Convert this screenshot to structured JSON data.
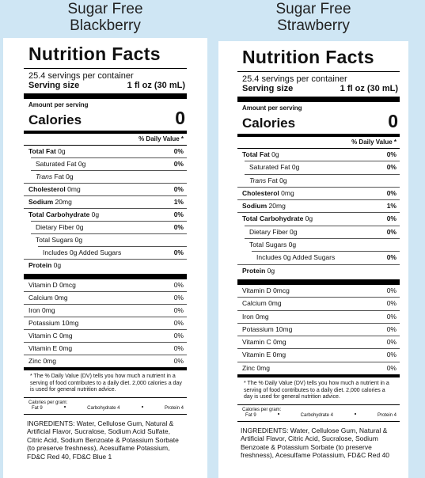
{
  "panels": [
    {
      "heading": [
        "Sugar Free",
        "Blackberry"
      ],
      "label": {
        "title": "Nutrition Facts",
        "servings": "25.4 servings per container",
        "serving_size": {
          "label": "Serving size",
          "value": "1 fl oz (30 mL)"
        },
        "amount_per_serving": "Amount per serving",
        "calories": {
          "label": "Calories",
          "value": "0"
        },
        "daily_value_header": "% Daily Value *",
        "nutrients": [
          {
            "name": "Total Fat",
            "bold": true,
            "amount": "0g",
            "dv": "0%"
          },
          {
            "name": "Saturated Fat",
            "level": 1,
            "amount": "0g",
            "dv": "0%"
          },
          {
            "prefix": "Trans",
            "name": "Fat",
            "level": 1,
            "amount": "0g"
          },
          {
            "name": "Cholesterol",
            "bold": true,
            "amount": "0mg",
            "dv": "0%"
          },
          {
            "name": "Sodium",
            "bold": true,
            "amount": "20mg",
            "dv": "1%"
          },
          {
            "name": "Total Carbohydrate",
            "bold": true,
            "amount": "0g",
            "dv": "0%"
          },
          {
            "name": "Dietary Fiber",
            "level": 1,
            "amount": "0g",
            "dv": "0%"
          },
          {
            "name": "Total Sugars",
            "level": 1,
            "amount": "0g"
          },
          {
            "name": "Includes 0g Added Sugars",
            "level": 2,
            "dv": "0%"
          },
          {
            "name": "Protein",
            "bold": true,
            "amount": "0g"
          }
        ],
        "vitamins": [
          {
            "name": "Vitamin D",
            "amount": "0mcg",
            "dv": "0%"
          },
          {
            "name": "Calcium",
            "amount": "0mg",
            "dv": "0%"
          },
          {
            "name": "Iron",
            "amount": "0mg",
            "dv": "0%"
          },
          {
            "name": "Potassium",
            "amount": "10mg",
            "dv": "0%"
          },
          {
            "name": "Vitamin C",
            "amount": "0mg",
            "dv": "0%"
          },
          {
            "name": "Vitamin E",
            "amount": "0mg",
            "dv": "0%"
          },
          {
            "name": "Zinc",
            "amount": "0mg",
            "dv": "0%"
          }
        ],
        "footnote": "* The % Daily Value (DV) tells you how much a nutrient in a serving of food contributes to a daily diet. 2,000 calories a day is used for general nutrition advice.",
        "calories_per_gram": {
          "label": "Calories per gram:",
          "items": [
            "Fat 9",
            "Carbohydrate 4",
            "Protein 4"
          ]
        },
        "ingredients": "INGREDIENTS: Water, Cellulose Gum, Natural & Artificial Flavor, Sucralose, Sodium Acid Sulfate, Citric Acid, Sodium Benzoate & Potassium Sorbate (to preserve freshness), Acesulfame Potassium, FD&C Red 40, FD&C Blue 1"
      }
    },
    {
      "heading": [
        "Sugar Free",
        "Strawberry"
      ],
      "label": {
        "title": "Nutrition Facts",
        "servings": "25.4 servings per container",
        "serving_size": {
          "label": "Serving size",
          "value": "1 fl oz (30 mL)"
        },
        "amount_per_serving": "Amount per serving",
        "calories": {
          "label": "Calories",
          "value": "0"
        },
        "daily_value_header": "% Daily Value *",
        "nutrients": [
          {
            "name": "Total Fat",
            "bold": true,
            "amount": "0g",
            "dv": "0%"
          },
          {
            "name": "Saturated Fat",
            "level": 1,
            "amount": "0g",
            "dv": "0%"
          },
          {
            "prefix": "Trans",
            "name": "Fat",
            "level": 1,
            "amount": "0g"
          },
          {
            "name": "Cholesterol",
            "bold": true,
            "amount": "0mg",
            "dv": "0%"
          },
          {
            "name": "Sodium",
            "bold": true,
            "amount": "20mg",
            "dv": "1%"
          },
          {
            "name": "Total Carbohydrate",
            "bold": true,
            "amount": "0g",
            "dv": "0%"
          },
          {
            "name": "Dietary Fiber",
            "level": 1,
            "amount": "0g",
            "dv": "0%"
          },
          {
            "name": "Total Sugars",
            "level": 1,
            "amount": "0g"
          },
          {
            "name": "Includes 0g Added Sugars",
            "level": 2,
            "dv": "0%"
          },
          {
            "name": "Protein",
            "bold": true,
            "amount": "0g"
          }
        ],
        "vitamins": [
          {
            "name": "Vitamin D",
            "amount": "0mcg",
            "dv": "0%"
          },
          {
            "name": "Calcium",
            "amount": "0mg",
            "dv": "0%"
          },
          {
            "name": "Iron",
            "amount": "0mg",
            "dv": "0%"
          },
          {
            "name": "Potassium",
            "amount": "10mg",
            "dv": "0%"
          },
          {
            "name": "Vitamin C",
            "amount": "0mg",
            "dv": "0%"
          },
          {
            "name": "Vitamin E",
            "amount": "0mg",
            "dv": "0%"
          },
          {
            "name": "Zinc",
            "amount": "0mg",
            "dv": "0%"
          }
        ],
        "footnote": "* The % Daily Value (DV) tells you how much a nutrient in a serving of food contributes to a daily diet. 2,000 calories a day is used for general nutrition advice.",
        "calories_per_gram": {
          "label": "Calories per gram:",
          "items": [
            "Fat 9",
            "Carbohydrate 4",
            "Protein 4"
          ]
        },
        "ingredients": "INGREDIENTS: Water, Cellulose Gum, Natural & Artificial Flavor, Citric Acid, Sucralose, Sodium Benzoate & Potassium Sorbate (to preserve freshness), Acesulfame Potassium, FD&C Red 40"
      }
    }
  ]
}
